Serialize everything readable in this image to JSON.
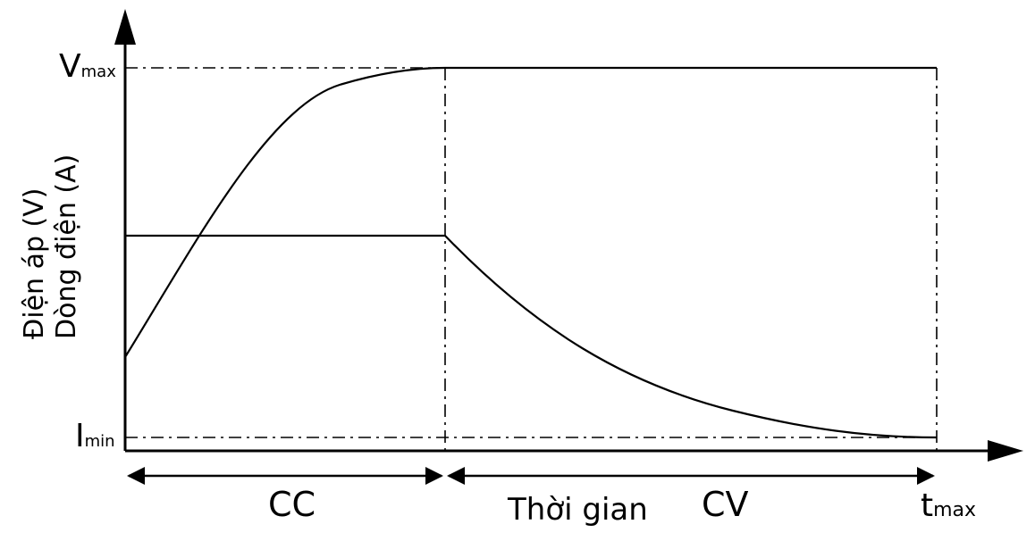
{
  "axes": {
    "y_label_line1": "Điện áp (V)",
    "y_label_line2": "Dòng điện (A)",
    "x_label": "Thời gian"
  },
  "levels": {
    "vmax": {
      "main": "V",
      "sub": "max"
    },
    "imin": {
      "main": "I",
      "sub": "min"
    },
    "tmax": {
      "main": "t",
      "sub": "max"
    }
  },
  "phases": {
    "cc": "CC",
    "cv": "CV"
  },
  "colors": {
    "stroke": "#000000",
    "background": "#ffffff"
  }
}
